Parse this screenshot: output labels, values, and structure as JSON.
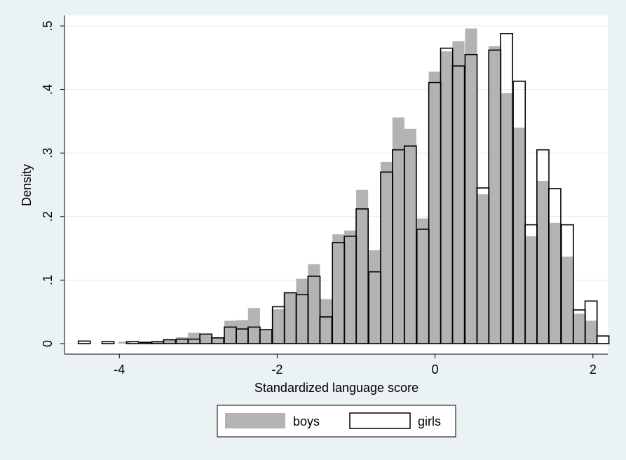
{
  "chart_data": {
    "type": "bar",
    "subtype": "overlaid histogram",
    "title": "",
    "xlabel": "Standardized language score",
    "ylabel": "Density",
    "xlim": [
      -4.7,
      2.3
    ],
    "ylim": [
      0,
      0.52
    ],
    "x_ticks": [
      -4,
      -2,
      0,
      2
    ],
    "x_tick_labels": [
      "-4",
      "-2",
      "0",
      "2"
    ],
    "y_ticks": [
      0,
      0.1,
      0.2,
      0.3,
      0.4,
      0.5
    ],
    "y_tick_labels": [
      "0",
      ".1",
      ".2",
      ".3",
      ".4",
      ".5"
    ],
    "y_gridlines": true,
    "legend_position": "bottom",
    "bin_width": 0.1524,
    "series": [
      {
        "name": "boys",
        "style": "filled",
        "color": "#b3b3b3",
        "bins": [
          {
            "x0": -4.01,
            "y": 0.003
          },
          {
            "x0": -3.74,
            "y": 0.002
          },
          {
            "x0": -3.59,
            "y": 0.003
          },
          {
            "x0": -3.44,
            "y": 0.006
          },
          {
            "x0": -3.28,
            "y": 0.01
          },
          {
            "x0": -3.13,
            "y": 0.017
          },
          {
            "x0": -2.98,
            "y": 0.016
          },
          {
            "x0": -2.83,
            "y": 0.009
          },
          {
            "x0": -2.67,
            "y": 0.036
          },
          {
            "x0": -2.52,
            "y": 0.037
          },
          {
            "x0": -2.37,
            "y": 0.056
          },
          {
            "x0": -2.22,
            "y": 0.022
          },
          {
            "x0": -2.06,
            "y": 0.054
          },
          {
            "x0": -1.91,
            "y": 0.08
          },
          {
            "x0": -1.76,
            "y": 0.102
          },
          {
            "x0": -1.61,
            "y": 0.125
          },
          {
            "x0": -1.46,
            "y": 0.07
          },
          {
            "x0": -1.3,
            "y": 0.172
          },
          {
            "x0": -1.15,
            "y": 0.178
          },
          {
            "x0": -1.0,
            "y": 0.242
          },
          {
            "x0": -0.84,
            "y": 0.147
          },
          {
            "x0": -0.69,
            "y": 0.286
          },
          {
            "x0": -0.54,
            "y": 0.356
          },
          {
            "x0": -0.39,
            "y": 0.338
          },
          {
            "x0": -0.23,
            "y": 0.197
          },
          {
            "x0": -0.08,
            "y": 0.428
          },
          {
            "x0": 0.07,
            "y": 0.46
          },
          {
            "x0": 0.22,
            "y": 0.476
          },
          {
            "x0": 0.38,
            "y": 0.496
          },
          {
            "x0": 0.53,
            "y": 0.235
          },
          {
            "x0": 0.68,
            "y": 0.468
          },
          {
            "x0": 0.83,
            "y": 0.394
          },
          {
            "x0": 0.99,
            "y": 0.34
          },
          {
            "x0": 1.14,
            "y": 0.169
          },
          {
            "x0": 1.29,
            "y": 0.256
          },
          {
            "x0": 1.44,
            "y": 0.19
          },
          {
            "x0": 1.6,
            "y": 0.137
          },
          {
            "x0": 1.75,
            "y": 0.047
          },
          {
            "x0": 1.9,
            "y": 0.036
          }
        ]
      },
      {
        "name": "girls",
        "style": "outline",
        "color": "#000000",
        "bins": [
          {
            "x0": -4.52,
            "y": 0.004
          },
          {
            "x0": -4.22,
            "y": 0.003
          },
          {
            "x0": -3.91,
            "y": 0.003
          },
          {
            "x0": -3.74,
            "y": 0.002
          },
          {
            "x0": -3.59,
            "y": 0.003
          },
          {
            "x0": -3.44,
            "y": 0.006
          },
          {
            "x0": -3.28,
            "y": 0.007
          },
          {
            "x0": -3.13,
            "y": 0.007
          },
          {
            "x0": -2.98,
            "y": 0.015
          },
          {
            "x0": -2.83,
            "y": 0.009
          },
          {
            "x0": -2.67,
            "y": 0.026
          },
          {
            "x0": -2.52,
            "y": 0.023
          },
          {
            "x0": -2.37,
            "y": 0.026
          },
          {
            "x0": -2.22,
            "y": 0.022
          },
          {
            "x0": -2.06,
            "y": 0.058
          },
          {
            "x0": -1.91,
            "y": 0.08
          },
          {
            "x0": -1.76,
            "y": 0.077
          },
          {
            "x0": -1.61,
            "y": 0.106
          },
          {
            "x0": -1.46,
            "y": 0.042
          },
          {
            "x0": -1.3,
            "y": 0.159
          },
          {
            "x0": -1.15,
            "y": 0.169
          },
          {
            "x0": -1.0,
            "y": 0.212
          },
          {
            "x0": -0.84,
            "y": 0.113
          },
          {
            "x0": -0.69,
            "y": 0.27
          },
          {
            "x0": -0.54,
            "y": 0.305
          },
          {
            "x0": -0.39,
            "y": 0.311
          },
          {
            "x0": -0.23,
            "y": 0.18
          },
          {
            "x0": -0.08,
            "y": 0.411
          },
          {
            "x0": 0.07,
            "y": 0.465
          },
          {
            "x0": 0.22,
            "y": 0.437
          },
          {
            "x0": 0.38,
            "y": 0.455
          },
          {
            "x0": 0.53,
            "y": 0.245
          },
          {
            "x0": 0.68,
            "y": 0.462
          },
          {
            "x0": 0.83,
            "y": 0.488
          },
          {
            "x0": 0.99,
            "y": 0.413
          },
          {
            "x0": 1.14,
            "y": 0.187
          },
          {
            "x0": 1.29,
            "y": 0.305
          },
          {
            "x0": 1.44,
            "y": 0.244
          },
          {
            "x0": 1.6,
            "y": 0.187
          },
          {
            "x0": 1.75,
            "y": 0.053
          },
          {
            "x0": 1.9,
            "y": 0.067
          },
          {
            "x0": 2.05,
            "y": 0.012
          }
        ]
      }
    ]
  }
}
